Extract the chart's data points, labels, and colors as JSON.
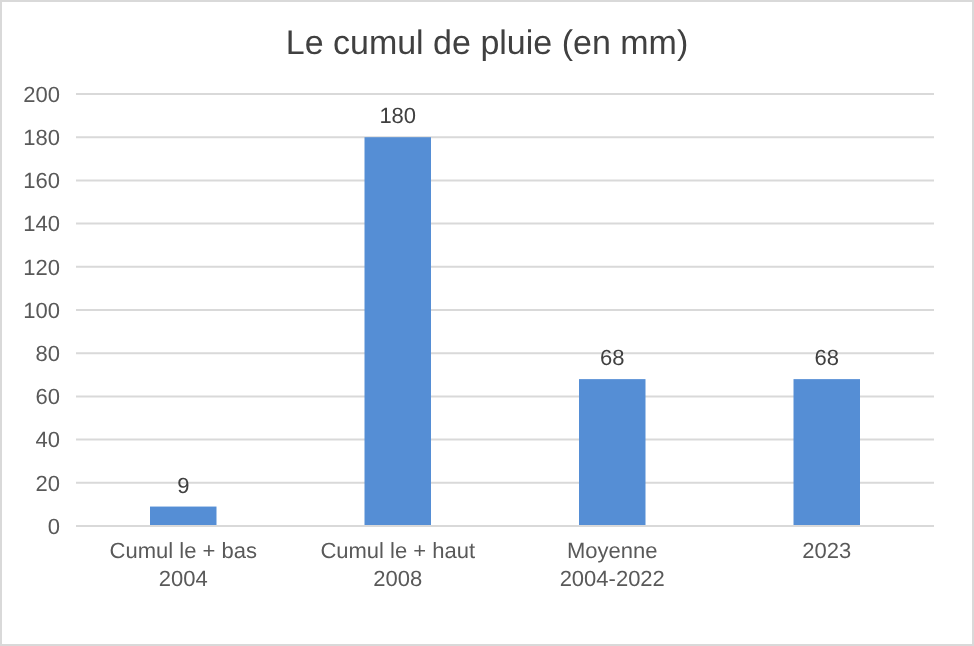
{
  "chart_data": {
    "type": "bar",
    "title": "Le cumul de pluie (en mm)",
    "categories": [
      "Cumul le + bas\n2004",
      "Cumul le + haut\n2008",
      "Moyenne\n2004-2022",
      "2023"
    ],
    "values": [
      9,
      180,
      68,
      68
    ],
    "color": "#558ed5",
    "ylim": [
      0,
      200
    ],
    "yticks": [
      0,
      20,
      40,
      60,
      80,
      100,
      120,
      140,
      160,
      180,
      200
    ],
    "grid": "y",
    "data_labels": true
  }
}
